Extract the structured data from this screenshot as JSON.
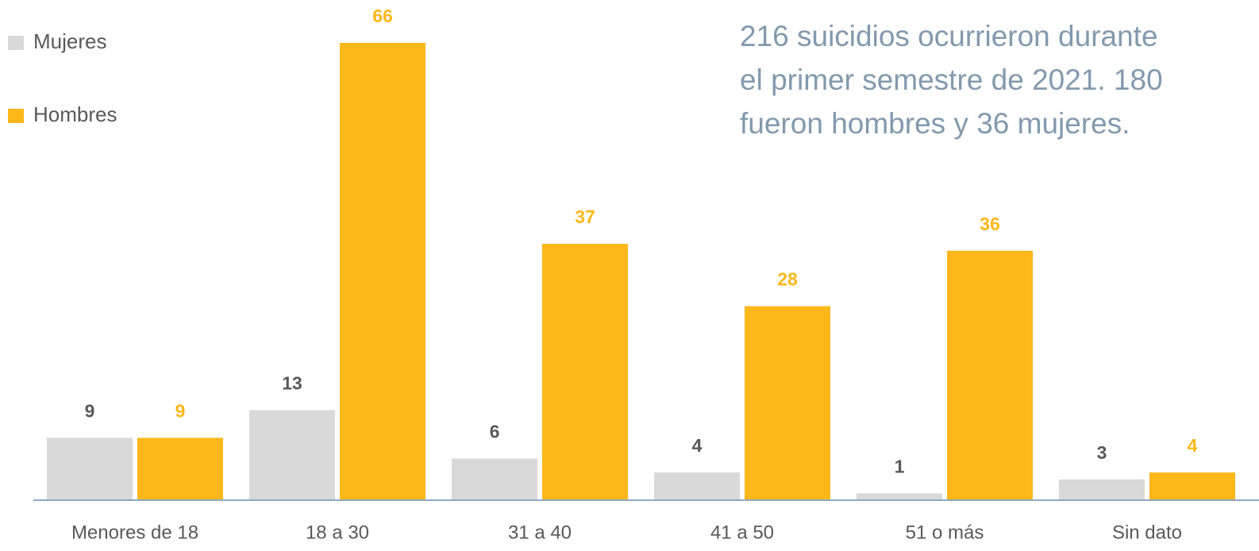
{
  "chart_data": {
    "type": "bar",
    "annotation": [
      "216 suicidios ocurrieron durante",
      "el primer semestre de 2021. 180",
      "fueron hombres y 36 mujeres."
    ],
    "categories": [
      "Menores de 18",
      "18 a 30",
      "31 a 40",
      "41 a 50",
      "51 o más",
      "Sin dato"
    ],
    "series": [
      {
        "name": "Mujeres",
        "color": "#d9d9d9",
        "label_color": "#595959",
        "values": [
          9,
          13,
          6,
          4,
          1,
          3
        ]
      },
      {
        "name": "Hombres",
        "color": "#fdb71a",
        "label_color": "#fdb71a",
        "values": [
          9,
          66,
          37,
          28,
          36,
          4
        ]
      }
    ]
  }
}
